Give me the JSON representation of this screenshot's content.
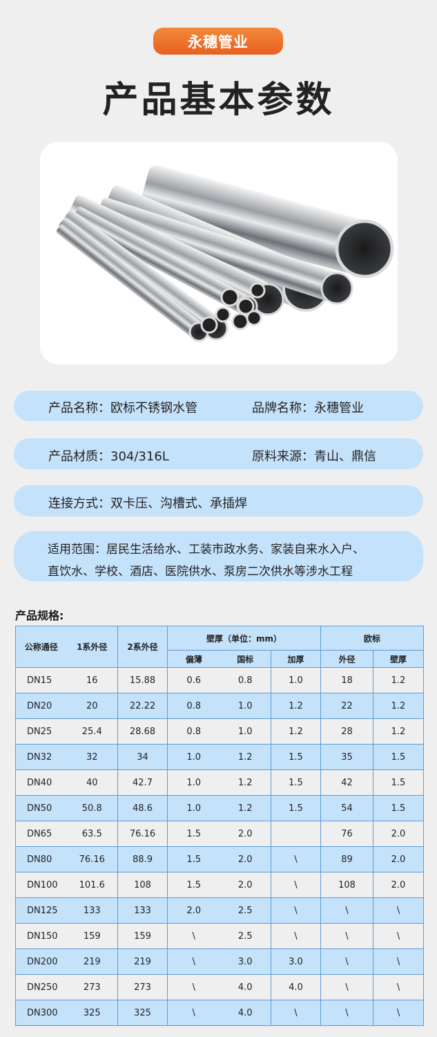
{
  "brand": "永穗管业",
  "title": "产品基本参数",
  "colors": {
    "brand_orange": "#e8601f",
    "pill_blue": "#c5e2fb",
    "table_line": "#5c9ad6"
  },
  "info": {
    "product_name": "产品名称：欧标不锈钢水管",
    "brand_name": "品牌名称：永穗管业",
    "material": "产品材质：304/316L",
    "raw_source": "原料来源：青山、鼎信",
    "connection": "连接方式：双卡压、沟槽式、承插焊",
    "scope_line1": "适用范围：居民生活给水、工装市政水务、家装自来水入户、",
    "scope_line2": "直饮水、学校、酒店、医院供水、泵房二次供水等涉水工程"
  },
  "spec": {
    "label": "产品规格:",
    "headers": {
      "dn": "公称通径",
      "od1": "1系外径",
      "od2": "2系外径",
      "wall": "壁厚（单位：mm）",
      "thin": "偏薄",
      "gb": "国标",
      "thick": "加厚",
      "eu": "欧标",
      "eu_od": "外径",
      "eu_wall": "壁厚"
    },
    "rows": [
      [
        "DN15",
        "16",
        "15.88",
        "0.6",
        "0.8",
        "1.0",
        "18",
        "1.2"
      ],
      [
        "DN20",
        "20",
        "22.22",
        "0.8",
        "1.0",
        "1.2",
        "22",
        "1.2"
      ],
      [
        "DN25",
        "25.4",
        "28.68",
        "0.8",
        "1.0",
        "1.2",
        "28",
        "1.2"
      ],
      [
        "DN32",
        "32",
        "34",
        "1.0",
        "1.2",
        "1.5",
        "35",
        "1.5"
      ],
      [
        "DN40",
        "40",
        "42.7",
        "1.0",
        "1.2",
        "1.5",
        "42",
        "1.5"
      ],
      [
        "DN50",
        "50.8",
        "48.6",
        "1.0",
        "1.2",
        "1.5",
        "54",
        "1.5"
      ],
      [
        "DN65",
        "63.5",
        "76.16",
        "1.5",
        "2.0",
        "",
        "76",
        "2.0"
      ],
      [
        "DN80",
        "76.16",
        "88.9",
        "1.5",
        "2.0",
        "\\",
        "89",
        "2.0"
      ],
      [
        "DN100",
        "101.6",
        "108",
        "1.5",
        "2.0",
        "\\",
        "108",
        "2.0"
      ],
      [
        "DN125",
        "133",
        "133",
        "2.0",
        "2.5",
        "\\",
        "\\",
        "\\"
      ],
      [
        "DN150",
        "159",
        "159",
        "\\",
        "2.5",
        "\\",
        "\\",
        "\\"
      ],
      [
        "DN200",
        "219",
        "219",
        "\\",
        "3.0",
        "3.0",
        "\\",
        "\\"
      ],
      [
        "DN250",
        "273",
        "273",
        "\\",
        "4.0",
        "4.0",
        "\\",
        "\\"
      ],
      [
        "DN300",
        "325",
        "325",
        "\\",
        "4.0",
        "\\",
        "\\",
        "\\"
      ]
    ]
  }
}
